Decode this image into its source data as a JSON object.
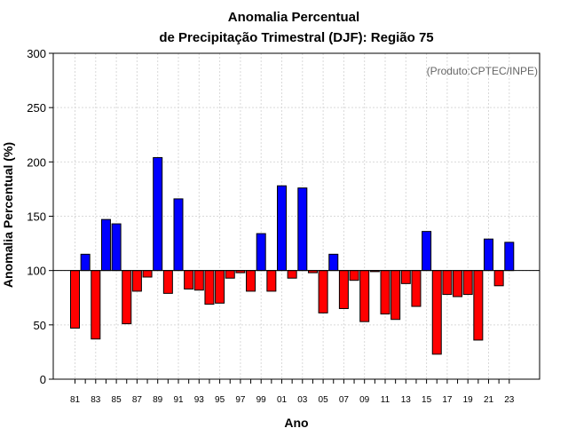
{
  "chart_data": {
    "type": "bar",
    "title_line1": "Anomalia Percentual",
    "title_line2": "de Precipitação Trimestral (DJF): Região 75",
    "xlabel": "Ano",
    "ylabel": "Anomalia Percentual (%)",
    "credit": "(Produto:CPTEC/INPE)",
    "ylim": [
      0,
      300
    ],
    "yticks": [
      0,
      50,
      100,
      150,
      200,
      250,
      300
    ],
    "baseline": 100,
    "grid": true,
    "colors": {
      "above": "#0000ff",
      "below": "#ff0000",
      "outline": "#000000",
      "grid": "#d9d9d9"
    },
    "categories": [
      "81",
      "82",
      "83",
      "84",
      "85",
      "86",
      "87",
      "88",
      "89",
      "90",
      "91",
      "92",
      "93",
      "94",
      "95",
      "96",
      "97",
      "98",
      "99",
      "00",
      "01",
      "02",
      "03",
      "04",
      "05",
      "06",
      "07",
      "08",
      "09",
      "10",
      "11",
      "12",
      "13",
      "14",
      "15",
      "16",
      "17",
      "18",
      "19",
      "20",
      "21",
      "22",
      "23"
    ],
    "tick_labels": [
      "81",
      "",
      "83",
      "",
      "85",
      "",
      "87",
      "",
      "89",
      "",
      "91",
      "",
      "93",
      "",
      "95",
      "",
      "97",
      "",
      "99",
      "",
      "01",
      "",
      "03",
      "",
      "05",
      "",
      "07",
      "",
      "09",
      "",
      "11",
      "",
      "13",
      "",
      "15",
      "",
      "17",
      "",
      "19",
      "",
      "21",
      "",
      "23"
    ],
    "values": [
      47,
      115,
      37,
      147,
      143,
      51,
      81,
      94,
      204,
      79,
      166,
      83,
      82,
      69,
      70,
      93,
      98,
      81,
      134,
      81,
      178,
      93,
      176,
      98,
      61,
      115,
      65,
      91,
      53,
      99,
      60,
      55,
      88,
      67,
      136,
      23,
      78,
      76,
      78,
      36,
      129,
      86,
      126
    ]
  }
}
